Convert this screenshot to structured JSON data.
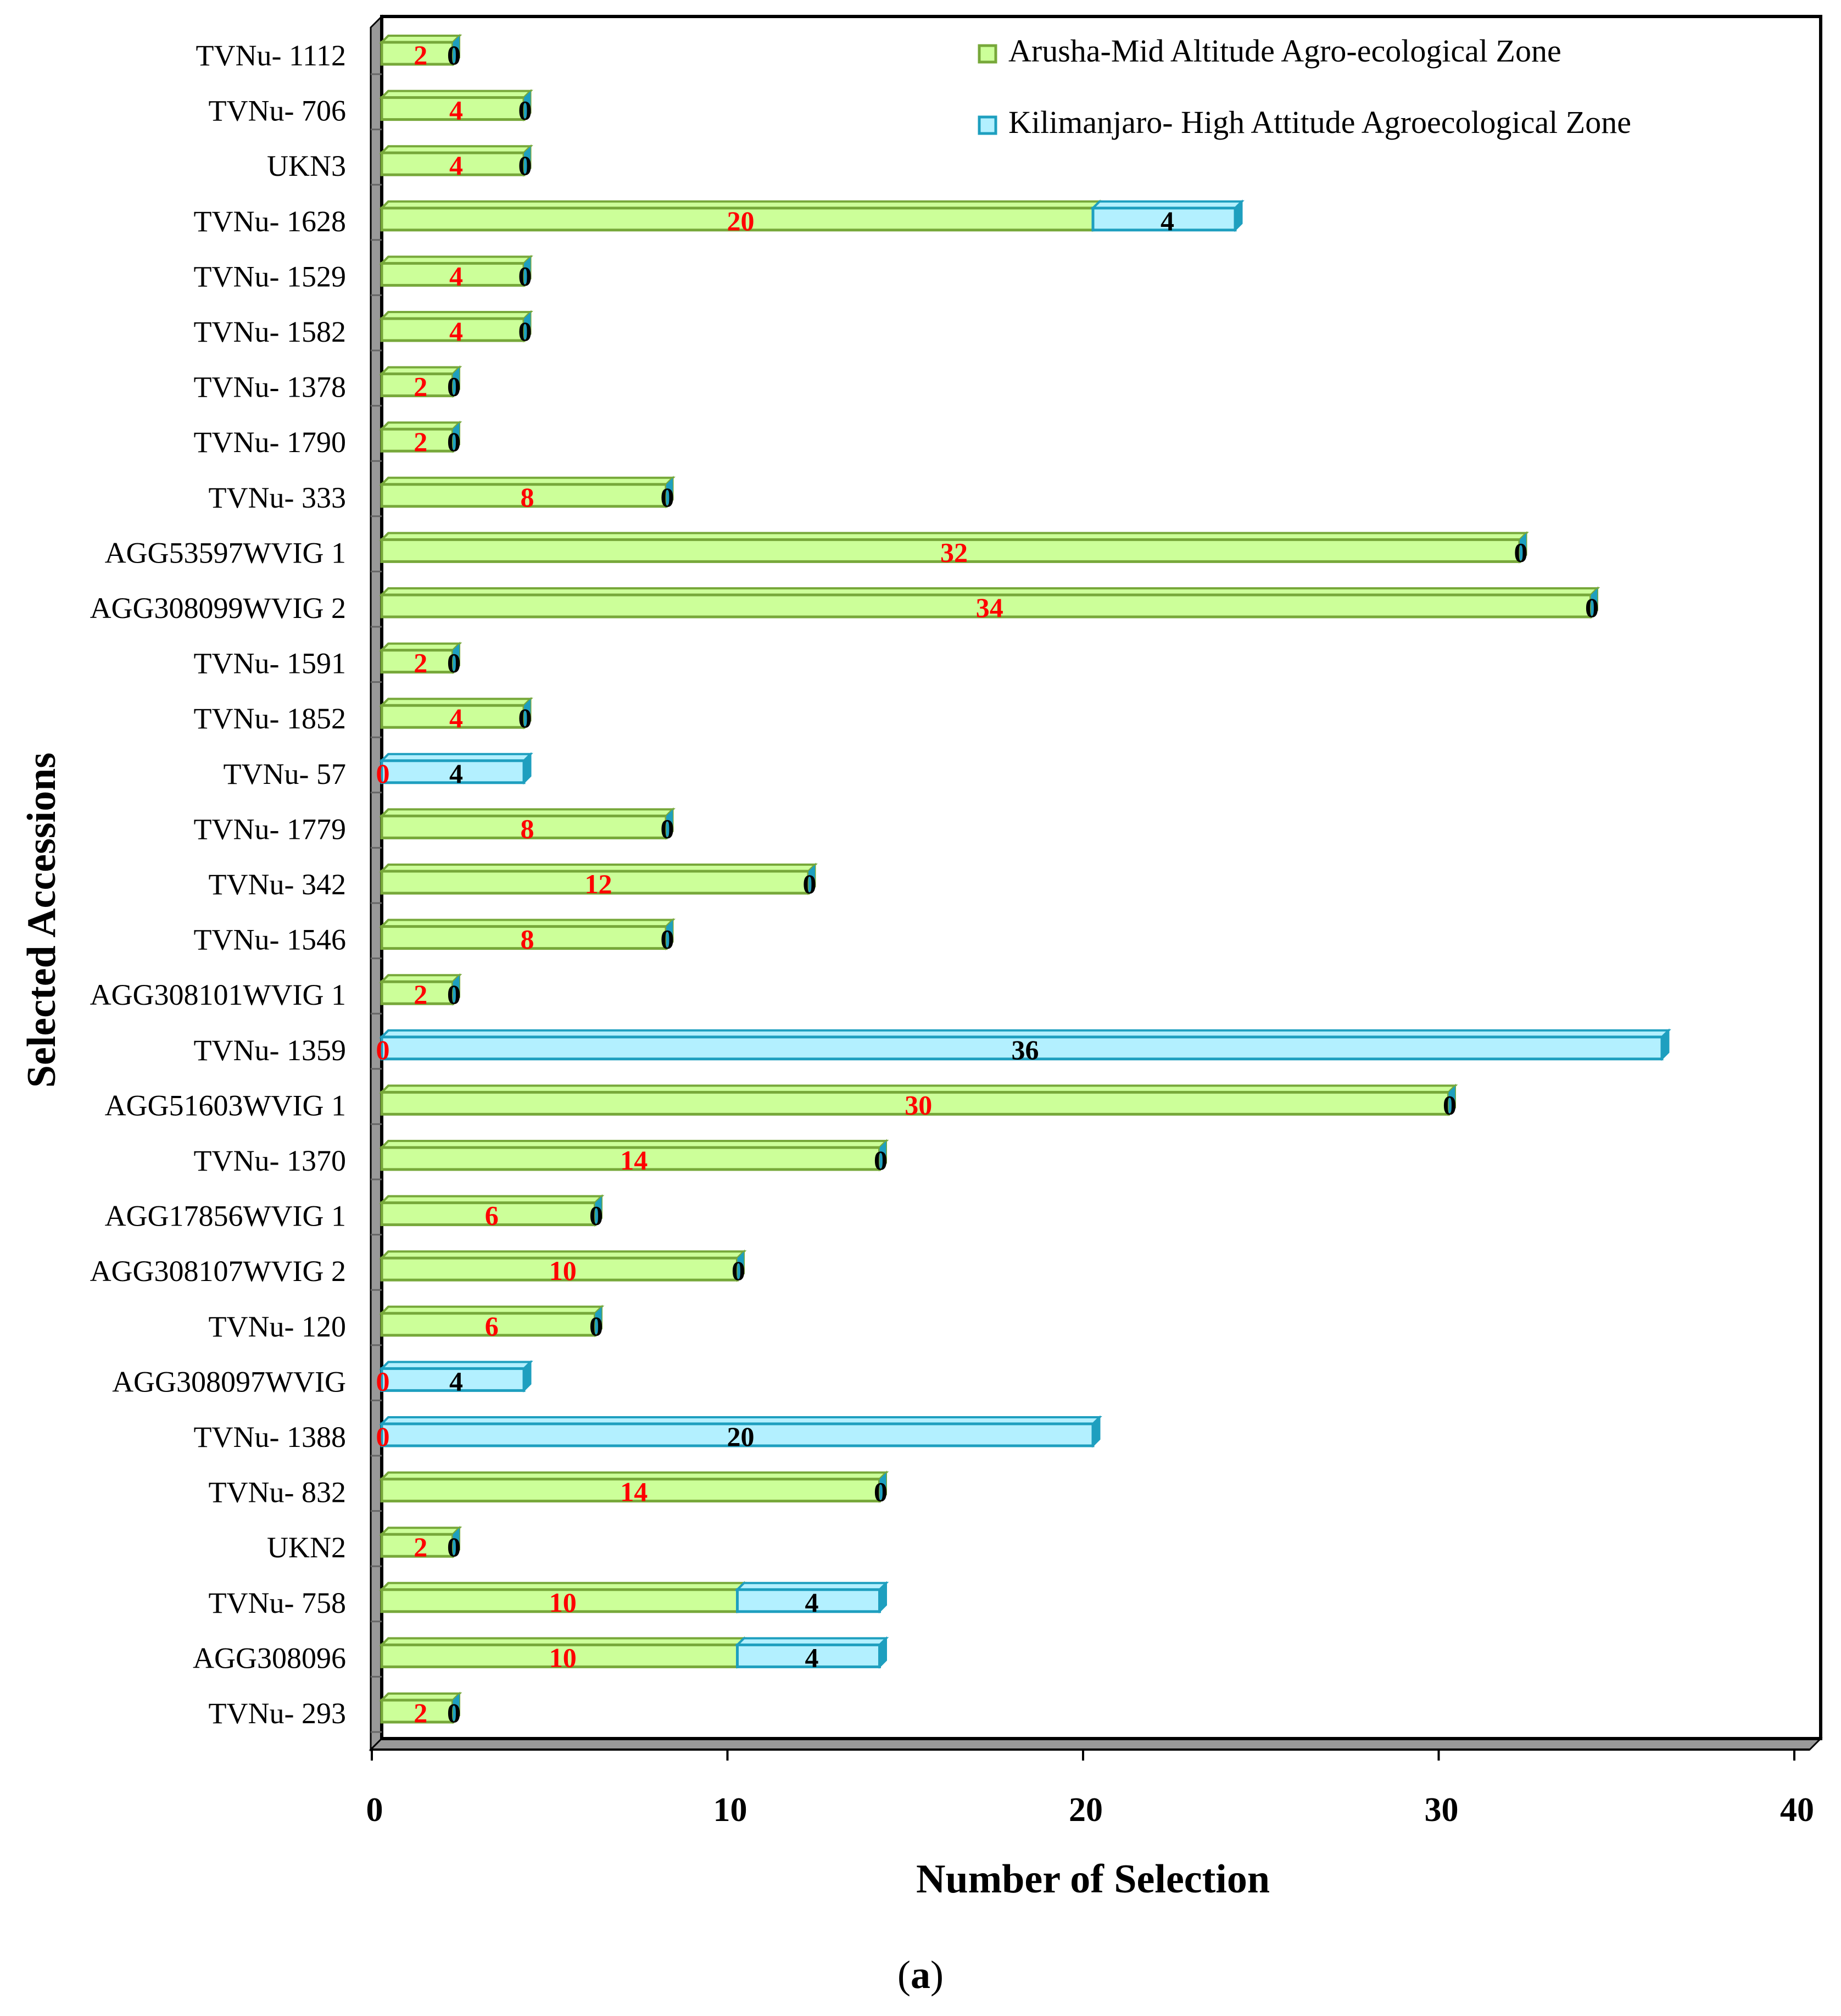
{
  "chart_data": {
    "type": "bar",
    "orientation": "horizontal",
    "stacked": true,
    "title": "",
    "xlabel": "Number of Selection",
    "ylabel": "Selected Accessions",
    "xlim": [
      0,
      40
    ],
    "xticks": [
      0,
      10,
      20,
      30,
      40
    ],
    "legend_position": "top-right",
    "categories": [
      "TVNu- 1112",
      "TVNu- 706",
      "UKN3",
      "TVNu- 1628",
      "TVNu- 1529",
      "TVNu- 1582",
      "TVNu- 1378",
      "TVNu- 1790",
      "TVNu- 333",
      "AGG53597WVIG 1",
      "AGG308099WVIG 2",
      "TVNu- 1591",
      "TVNu- 1852",
      "TVNu- 57",
      "TVNu- 1779",
      "TVNu- 342",
      "TVNu- 1546",
      "AGG308101WVIG 1",
      "TVNu- 1359",
      "AGG51603WVIG 1",
      "TVNu- 1370",
      "AGG17856WVIG 1",
      "AGG308107WVIG 2",
      "TVNu- 120",
      "AGG308097WVIG",
      "TVNu- 1388",
      "TVNu- 832",
      "UKN2",
      "TVNu- 758",
      "AGG308096",
      "TVNu- 293"
    ],
    "series": [
      {
        "name": "Arusha-Mid Altitude Agro-ecological Zone",
        "color": "#ccff99",
        "edge": "#77a83a",
        "label_color": "#ff0000",
        "values": [
          2,
          4,
          4,
          20,
          4,
          4,
          2,
          2,
          8,
          32,
          34,
          2,
          4,
          0,
          8,
          12,
          8,
          2,
          0,
          30,
          14,
          6,
          10,
          6,
          0,
          0,
          14,
          2,
          10,
          10,
          2
        ]
      },
      {
        "name": "Kilimanjaro- High Attitude Agroecological Zone",
        "color": "#b3f0ff",
        "edge": "#1e9fbf",
        "label_color": "#000000",
        "values": [
          0,
          0,
          0,
          4,
          0,
          0,
          0,
          0,
          0,
          0,
          0,
          0,
          0,
          4,
          0,
          0,
          0,
          0,
          36,
          0,
          0,
          0,
          0,
          0,
          4,
          20,
          0,
          0,
          4,
          4,
          0
        ]
      }
    ]
  },
  "caption": {
    "open": "(",
    "letter": "a",
    "close": ")"
  }
}
